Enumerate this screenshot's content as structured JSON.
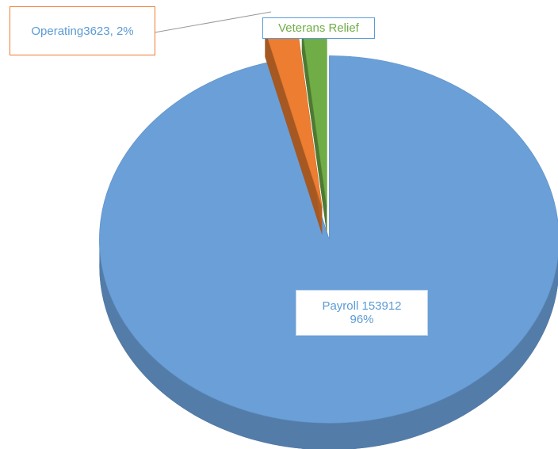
{
  "chart_data": {
    "type": "pie",
    "values": [
      153912,
      3623,
      2790
    ],
    "value_labels": [
      [
        "Payroll 153912",
        "96%"
      ],
      [
        "Operating3623, 2%"
      ],
      [
        "Veterans Relief"
      ]
    ],
    "colors": [
      "#6a9fd8",
      "#ed7d31",
      "#70ad47"
    ],
    "exploded": [
      false,
      true,
      true
    ],
    "start_angle": -90
  }
}
